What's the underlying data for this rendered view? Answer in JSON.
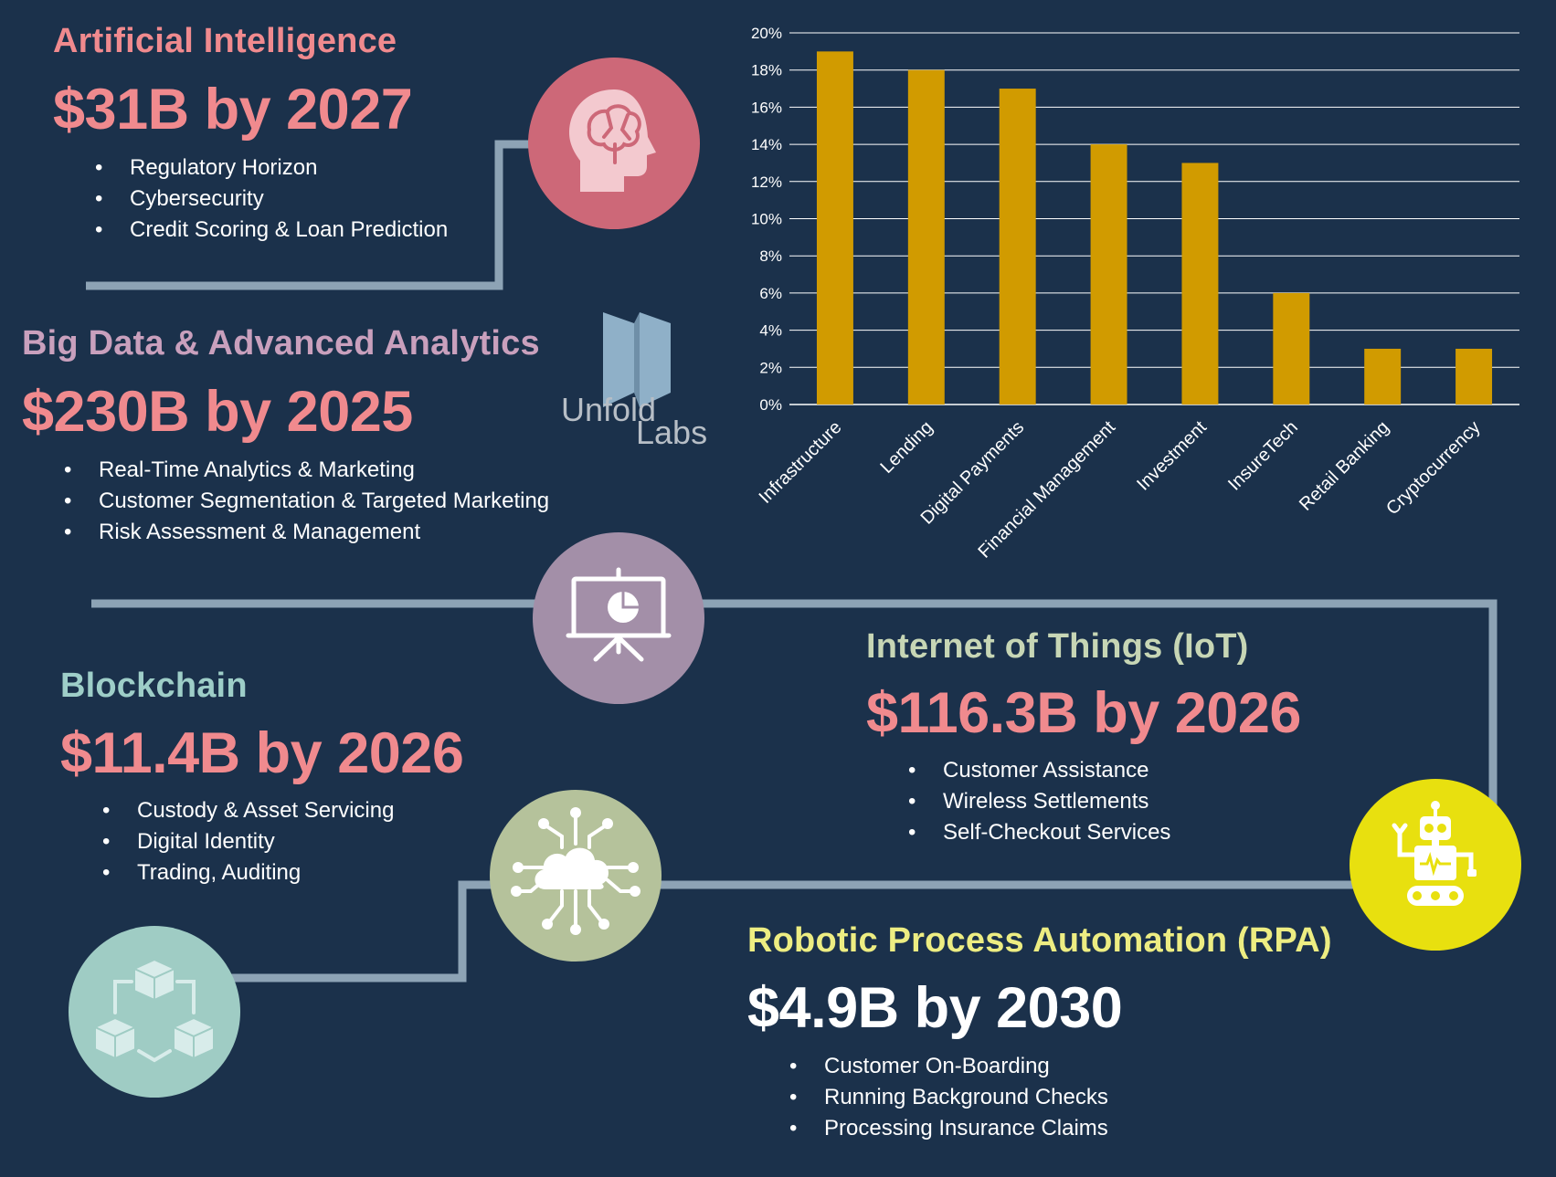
{
  "colors": {
    "background": "#1b314b",
    "connector": "#8da3b5",
    "ai_circle": "#cd6878",
    "bigdata_circle": "#a38fa8",
    "iot_circle": "#b5c29b",
    "robot_circle": "#e8e00f",
    "blockchain_circle": "#9fccc4",
    "bar": "#d19b00",
    "pink": "#f08a8e",
    "bigdata_title": "#c9a0bd",
    "blockchain_title": "#9ecec8",
    "iot_title": "#c7d6b5",
    "rpa_title": "#eded82",
    "white": "#ffffff"
  },
  "sections": {
    "ai": {
      "title": "Artificial Intelligence",
      "value": "$31B by 2027",
      "bullets": [
        "Regulatory Horizon",
        "Cybersecurity",
        "Credit Scoring & Loan Prediction"
      ],
      "icon": "brain-head-icon"
    },
    "bigdata": {
      "title": "Big Data & Advanced Analytics",
      "value": "$230B by 2025",
      "bullets": [
        "Real-Time Analytics & Marketing",
        "Customer Segmentation & Targeted Marketing",
        "Risk Assessment & Management"
      ],
      "icon": "presentation-board-icon"
    },
    "blockchain": {
      "title": "Blockchain",
      "value": "$11.4B by 2026",
      "bullets": [
        "Custody & Asset Servicing",
        "Digital Identity",
        "Trading, Auditing"
      ],
      "icon": "blockchain-cubes-icon"
    },
    "iot": {
      "title": "Internet of Things (IoT)",
      "value": "$116.3B by 2026",
      "bullets": [
        "Customer Assistance",
        "Wireless Settlements",
        "Self-Checkout Services"
      ],
      "icon": "cloud-network-icon"
    },
    "rpa": {
      "title": "Robotic Process Automation (RPA)",
      "value": "$4.9B by 2030",
      "bullets": [
        "Customer On-Boarding",
        "Running Background Checks",
        "Processing Insurance Claims"
      ],
      "icon": "robot-icon"
    }
  },
  "logo": {
    "line1": "Unfold",
    "line2": "Labs"
  },
  "chart_data": {
    "type": "bar",
    "title": "",
    "xlabel": "",
    "ylabel": "",
    "categories": [
      "Infrastructure",
      "Lending",
      "Digital Payments",
      "Financial Management",
      "Investment",
      "InsureTech",
      "Retail Banking",
      "Cryptocurrency"
    ],
    "values": [
      19,
      18,
      17,
      14,
      13,
      6,
      3,
      3
    ],
    "ylim": [
      0,
      20
    ],
    "yticks": [
      0,
      2,
      4,
      6,
      8,
      10,
      12,
      14,
      16,
      18,
      20
    ],
    "ytick_labels": [
      "0%",
      "2%",
      "4%",
      "6%",
      "8%",
      "10%",
      "12%",
      "14%",
      "16%",
      "18%",
      "20%"
    ],
    "grid": true,
    "legend": "none"
  }
}
